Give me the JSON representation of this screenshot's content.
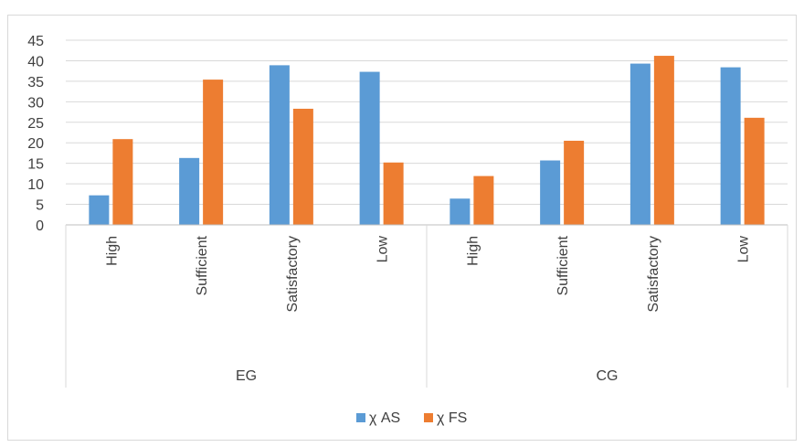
{
  "chart_data": {
    "type": "bar",
    "groups": [
      {
        "name": "EG",
        "categories": [
          "High",
          "Sufficient",
          "Satisfactory",
          "Low"
        ]
      },
      {
        "name": "CG",
        "categories": [
          "High",
          "Sufficient",
          "Satisfactory",
          "Low"
        ]
      }
    ],
    "categories": [
      "High",
      "Sufficient",
      "Satisfactory",
      "Low",
      "High",
      "Sufficient",
      "Satisfactory",
      "Low"
    ],
    "series": [
      {
        "name": "χ AS",
        "color": "#5b9bd5",
        "values": [
          7.2,
          16.3,
          38.9,
          37.3,
          6.4,
          15.7,
          39.3,
          38.4
        ]
      },
      {
        "name": "χ FS",
        "color": "#ed7d31",
        "values": [
          20.9,
          35.4,
          28.3,
          15.2,
          11.9,
          20.5,
          41.2,
          26.1
        ]
      }
    ],
    "ylim": [
      0,
      45
    ],
    "yticks": [
      "0",
      "5",
      "10",
      "15",
      "20",
      "25",
      "30",
      "35",
      "40",
      "45"
    ],
    "grid": true,
    "legend": "bottom"
  }
}
